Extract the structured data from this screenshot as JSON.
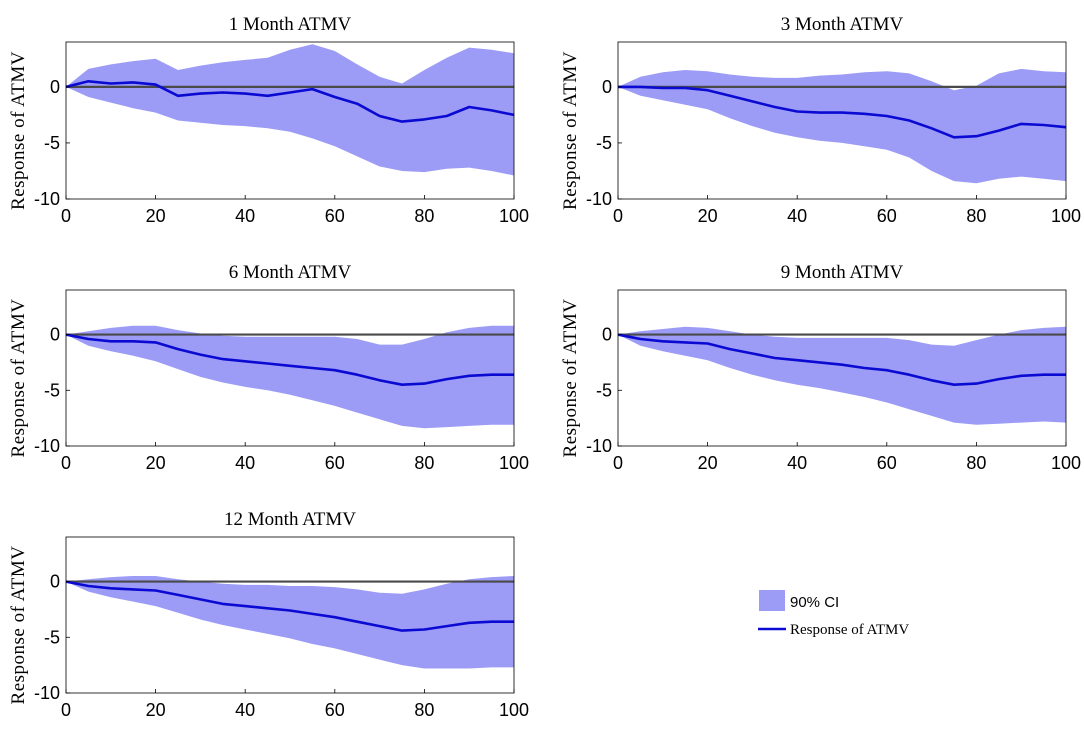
{
  "figure": {
    "legend": {
      "ci_label": "90% CI",
      "line_label": "Response of ATMV",
      "placement": "lower-right panel slot"
    },
    "colors": {
      "band": "#9c9cf7",
      "response": "#0a0ad2",
      "zero_line": "#4a4a4a",
      "axis": "#000000"
    }
  },
  "chart_data": [
    {
      "type": "area",
      "title": "1 Month ATMV",
      "ylabel": "Response of ATMV",
      "xlabel": "",
      "xlim": [
        0,
        100
      ],
      "ylim": [
        -10,
        4
      ],
      "xticks": [
        "0",
        "20",
        "40",
        "60",
        "80",
        "100"
      ],
      "yticks": [
        "0",
        "-5",
        "-10"
      ],
      "grid": false,
      "x": [
        0,
        5,
        10,
        15,
        20,
        25,
        30,
        35,
        40,
        45,
        50,
        55,
        60,
        65,
        70,
        75,
        80,
        85,
        90,
        95,
        100
      ],
      "series": [
        {
          "name": "Response of ATMV",
          "values": [
            0,
            0.5,
            0.3,
            0.4,
            0.2,
            -0.8,
            -0.6,
            -0.5,
            -0.6,
            -0.8,
            -0.5,
            -0.2,
            -0.9,
            -1.5,
            -2.6,
            -3.1,
            -2.9,
            -2.6,
            -1.8,
            -2.1,
            -2.5
          ]
        },
        {
          "name": "90% CI upper",
          "values": [
            0,
            1.6,
            2.0,
            2.3,
            2.5,
            1.5,
            1.9,
            2.2,
            2.4,
            2.6,
            3.3,
            3.8,
            3.2,
            2.0,
            0.9,
            0.3,
            1.5,
            2.6,
            3.5,
            3.3,
            3.0
          ]
        },
        {
          "name": "90% CI lower",
          "values": [
            0,
            -0.9,
            -1.4,
            -1.9,
            -2.3,
            -3.0,
            -3.2,
            -3.4,
            -3.5,
            -3.7,
            -4.0,
            -4.6,
            -5.3,
            -6.2,
            -7.1,
            -7.5,
            -7.6,
            -7.3,
            -7.2,
            -7.5,
            -7.9
          ]
        }
      ]
    },
    {
      "type": "area",
      "title": "3 Month ATMV",
      "ylabel": "Response of ATMV",
      "xlabel": "",
      "xlim": [
        0,
        100
      ],
      "ylim": [
        -10,
        4
      ],
      "xticks": [
        "0",
        "20",
        "40",
        "60",
        "80",
        "100"
      ],
      "yticks": [
        "0",
        "-5",
        "-10"
      ],
      "grid": false,
      "x": [
        0,
        5,
        10,
        15,
        20,
        25,
        30,
        35,
        40,
        45,
        50,
        55,
        60,
        65,
        70,
        75,
        80,
        85,
        90,
        95,
        100
      ],
      "series": [
        {
          "name": "Response of ATMV",
          "values": [
            0,
            0,
            -0.1,
            -0.1,
            -0.3,
            -0.8,
            -1.3,
            -1.8,
            -2.2,
            -2.3,
            -2.3,
            -2.4,
            -2.6,
            -3.0,
            -3.7,
            -4.5,
            -4.4,
            -3.9,
            -3.3,
            -3.4,
            -3.6
          ]
        },
        {
          "name": "90% CI upper",
          "values": [
            0,
            0.9,
            1.3,
            1.5,
            1.4,
            1.1,
            0.9,
            0.8,
            0.8,
            1.0,
            1.1,
            1.3,
            1.4,
            1.2,
            0.5,
            -0.3,
            0.1,
            1.2,
            1.6,
            1.4,
            1.3
          ]
        },
        {
          "name": "90% CI lower",
          "values": [
            0,
            -0.8,
            -1.2,
            -1.6,
            -2.0,
            -2.8,
            -3.5,
            -4.1,
            -4.5,
            -4.8,
            -5.0,
            -5.3,
            -5.6,
            -6.3,
            -7.5,
            -8.4,
            -8.6,
            -8.2,
            -8.0,
            -8.2,
            -8.4
          ]
        }
      ]
    },
    {
      "type": "area",
      "title": "6 Month ATMV",
      "ylabel": "Response of ATMV",
      "xlabel": "",
      "xlim": [
        0,
        100
      ],
      "ylim": [
        -10,
        4
      ],
      "xticks": [
        "0",
        "20",
        "40",
        "60",
        "80",
        "100"
      ],
      "yticks": [
        "0",
        "-5",
        "-10"
      ],
      "grid": false,
      "x": [
        0,
        5,
        10,
        15,
        20,
        25,
        30,
        35,
        40,
        45,
        50,
        55,
        60,
        65,
        70,
        75,
        80,
        85,
        90,
        95,
        100
      ],
      "series": [
        {
          "name": "Response of ATMV",
          "values": [
            0,
            -0.4,
            -0.6,
            -0.6,
            -0.7,
            -1.3,
            -1.8,
            -2.2,
            -2.4,
            -2.6,
            -2.8,
            -3.0,
            -3.2,
            -3.6,
            -4.1,
            -4.5,
            -4.4,
            -4.0,
            -3.7,
            -3.6,
            -3.6
          ]
        },
        {
          "name": "90% CI upper",
          "values": [
            0,
            0.3,
            0.6,
            0.8,
            0.8,
            0.4,
            0.1,
            -0.1,
            -0.2,
            -0.2,
            -0.2,
            -0.2,
            -0.2,
            -0.4,
            -0.9,
            -0.9,
            -0.4,
            0.2,
            0.6,
            0.8,
            0.8
          ]
        },
        {
          "name": "90% CI lower",
          "values": [
            0,
            -1.0,
            -1.5,
            -1.9,
            -2.4,
            -3.1,
            -3.8,
            -4.3,
            -4.7,
            -5.0,
            -5.4,
            -5.9,
            -6.4,
            -7.0,
            -7.6,
            -8.2,
            -8.4,
            -8.3,
            -8.2,
            -8.1,
            -8.1
          ]
        }
      ]
    },
    {
      "type": "area",
      "title": "9 Month ATMV",
      "ylabel": "Response of ATMV",
      "xlabel": "",
      "xlim": [
        0,
        100
      ],
      "ylim": [
        -10,
        4
      ],
      "xticks": [
        "0",
        "20",
        "40",
        "60",
        "80",
        "100"
      ],
      "yticks": [
        "0",
        "-5",
        "-10"
      ],
      "grid": false,
      "x": [
        0,
        5,
        10,
        15,
        20,
        25,
        30,
        35,
        40,
        45,
        50,
        55,
        60,
        65,
        70,
        75,
        80,
        85,
        90,
        95,
        100
      ],
      "series": [
        {
          "name": "Response of ATMV",
          "values": [
            0,
            -0.4,
            -0.6,
            -0.7,
            -0.8,
            -1.3,
            -1.7,
            -2.1,
            -2.3,
            -2.5,
            -2.7,
            -3.0,
            -3.2,
            -3.6,
            -4.1,
            -4.5,
            -4.4,
            -4.0,
            -3.7,
            -3.6,
            -3.6
          ]
        },
        {
          "name": "90% CI upper",
          "values": [
            0,
            0.3,
            0.5,
            0.7,
            0.6,
            0.3,
            0.0,
            -0.2,
            -0.3,
            -0.3,
            -0.3,
            -0.3,
            -0.3,
            -0.5,
            -0.9,
            -1.0,
            -0.5,
            0.0,
            0.4,
            0.6,
            0.7
          ]
        },
        {
          "name": "90% CI lower",
          "values": [
            0,
            -1.0,
            -1.5,
            -1.9,
            -2.3,
            -3.0,
            -3.6,
            -4.1,
            -4.5,
            -4.8,
            -5.2,
            -5.6,
            -6.1,
            -6.7,
            -7.3,
            -7.9,
            -8.1,
            -8.0,
            -7.9,
            -7.8,
            -7.9
          ]
        }
      ]
    },
    {
      "type": "area",
      "title": "12 Month ATMV",
      "ylabel": "Response of ATMV",
      "xlabel": "",
      "xlim": [
        0,
        100
      ],
      "ylim": [
        -10,
        4
      ],
      "xticks": [
        "0",
        "20",
        "40",
        "60",
        "80",
        "100"
      ],
      "yticks": [
        "0",
        "-5",
        "-10"
      ],
      "grid": false,
      "x": [
        0,
        5,
        10,
        15,
        20,
        25,
        30,
        35,
        40,
        45,
        50,
        55,
        60,
        65,
        70,
        75,
        80,
        85,
        90,
        95,
        100
      ],
      "series": [
        {
          "name": "Response of ATMV",
          "values": [
            0,
            -0.4,
            -0.6,
            -0.7,
            -0.8,
            -1.2,
            -1.6,
            -2.0,
            -2.2,
            -2.4,
            -2.6,
            -2.9,
            -3.2,
            -3.6,
            -4.0,
            -4.4,
            -4.3,
            -4.0,
            -3.7,
            -3.6,
            -3.6
          ]
        },
        {
          "name": "90% CI upper",
          "values": [
            0,
            0.2,
            0.4,
            0.5,
            0.5,
            0.2,
            0.0,
            -0.2,
            -0.3,
            -0.3,
            -0.4,
            -0.4,
            -0.5,
            -0.7,
            -1.0,
            -1.1,
            -0.7,
            -0.2,
            0.2,
            0.4,
            0.5
          ]
        },
        {
          "name": "90% CI lower",
          "values": [
            0,
            -0.9,
            -1.4,
            -1.8,
            -2.2,
            -2.8,
            -3.4,
            -3.9,
            -4.3,
            -4.7,
            -5.1,
            -5.6,
            -6.0,
            -6.5,
            -7.0,
            -7.5,
            -7.8,
            -7.8,
            -7.8,
            -7.7,
            -7.7
          ]
        }
      ]
    }
  ]
}
